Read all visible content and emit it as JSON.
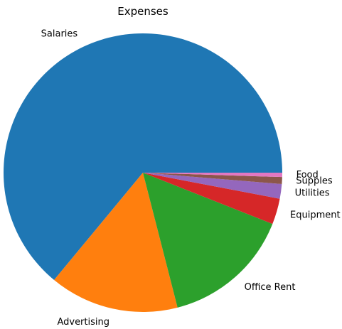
{
  "chart_data": {
    "type": "pie",
    "title": "Expenses",
    "start_angle_deg": 0,
    "direction": "counterclockwise",
    "categories": [
      "Salaries",
      "Advertising",
      "Office Rent",
      "Equipment",
      "Utilities",
      "Supples",
      "Food"
    ],
    "values": [
      64.0,
      15.0,
      15.0,
      3.0,
      1.7,
      0.8,
      0.5
    ],
    "colors": [
      "#1f77b4",
      "#ff7f0e",
      "#2ca02c",
      "#d62728",
      "#9467bd",
      "#8c564b",
      "#e377c2"
    ]
  }
}
